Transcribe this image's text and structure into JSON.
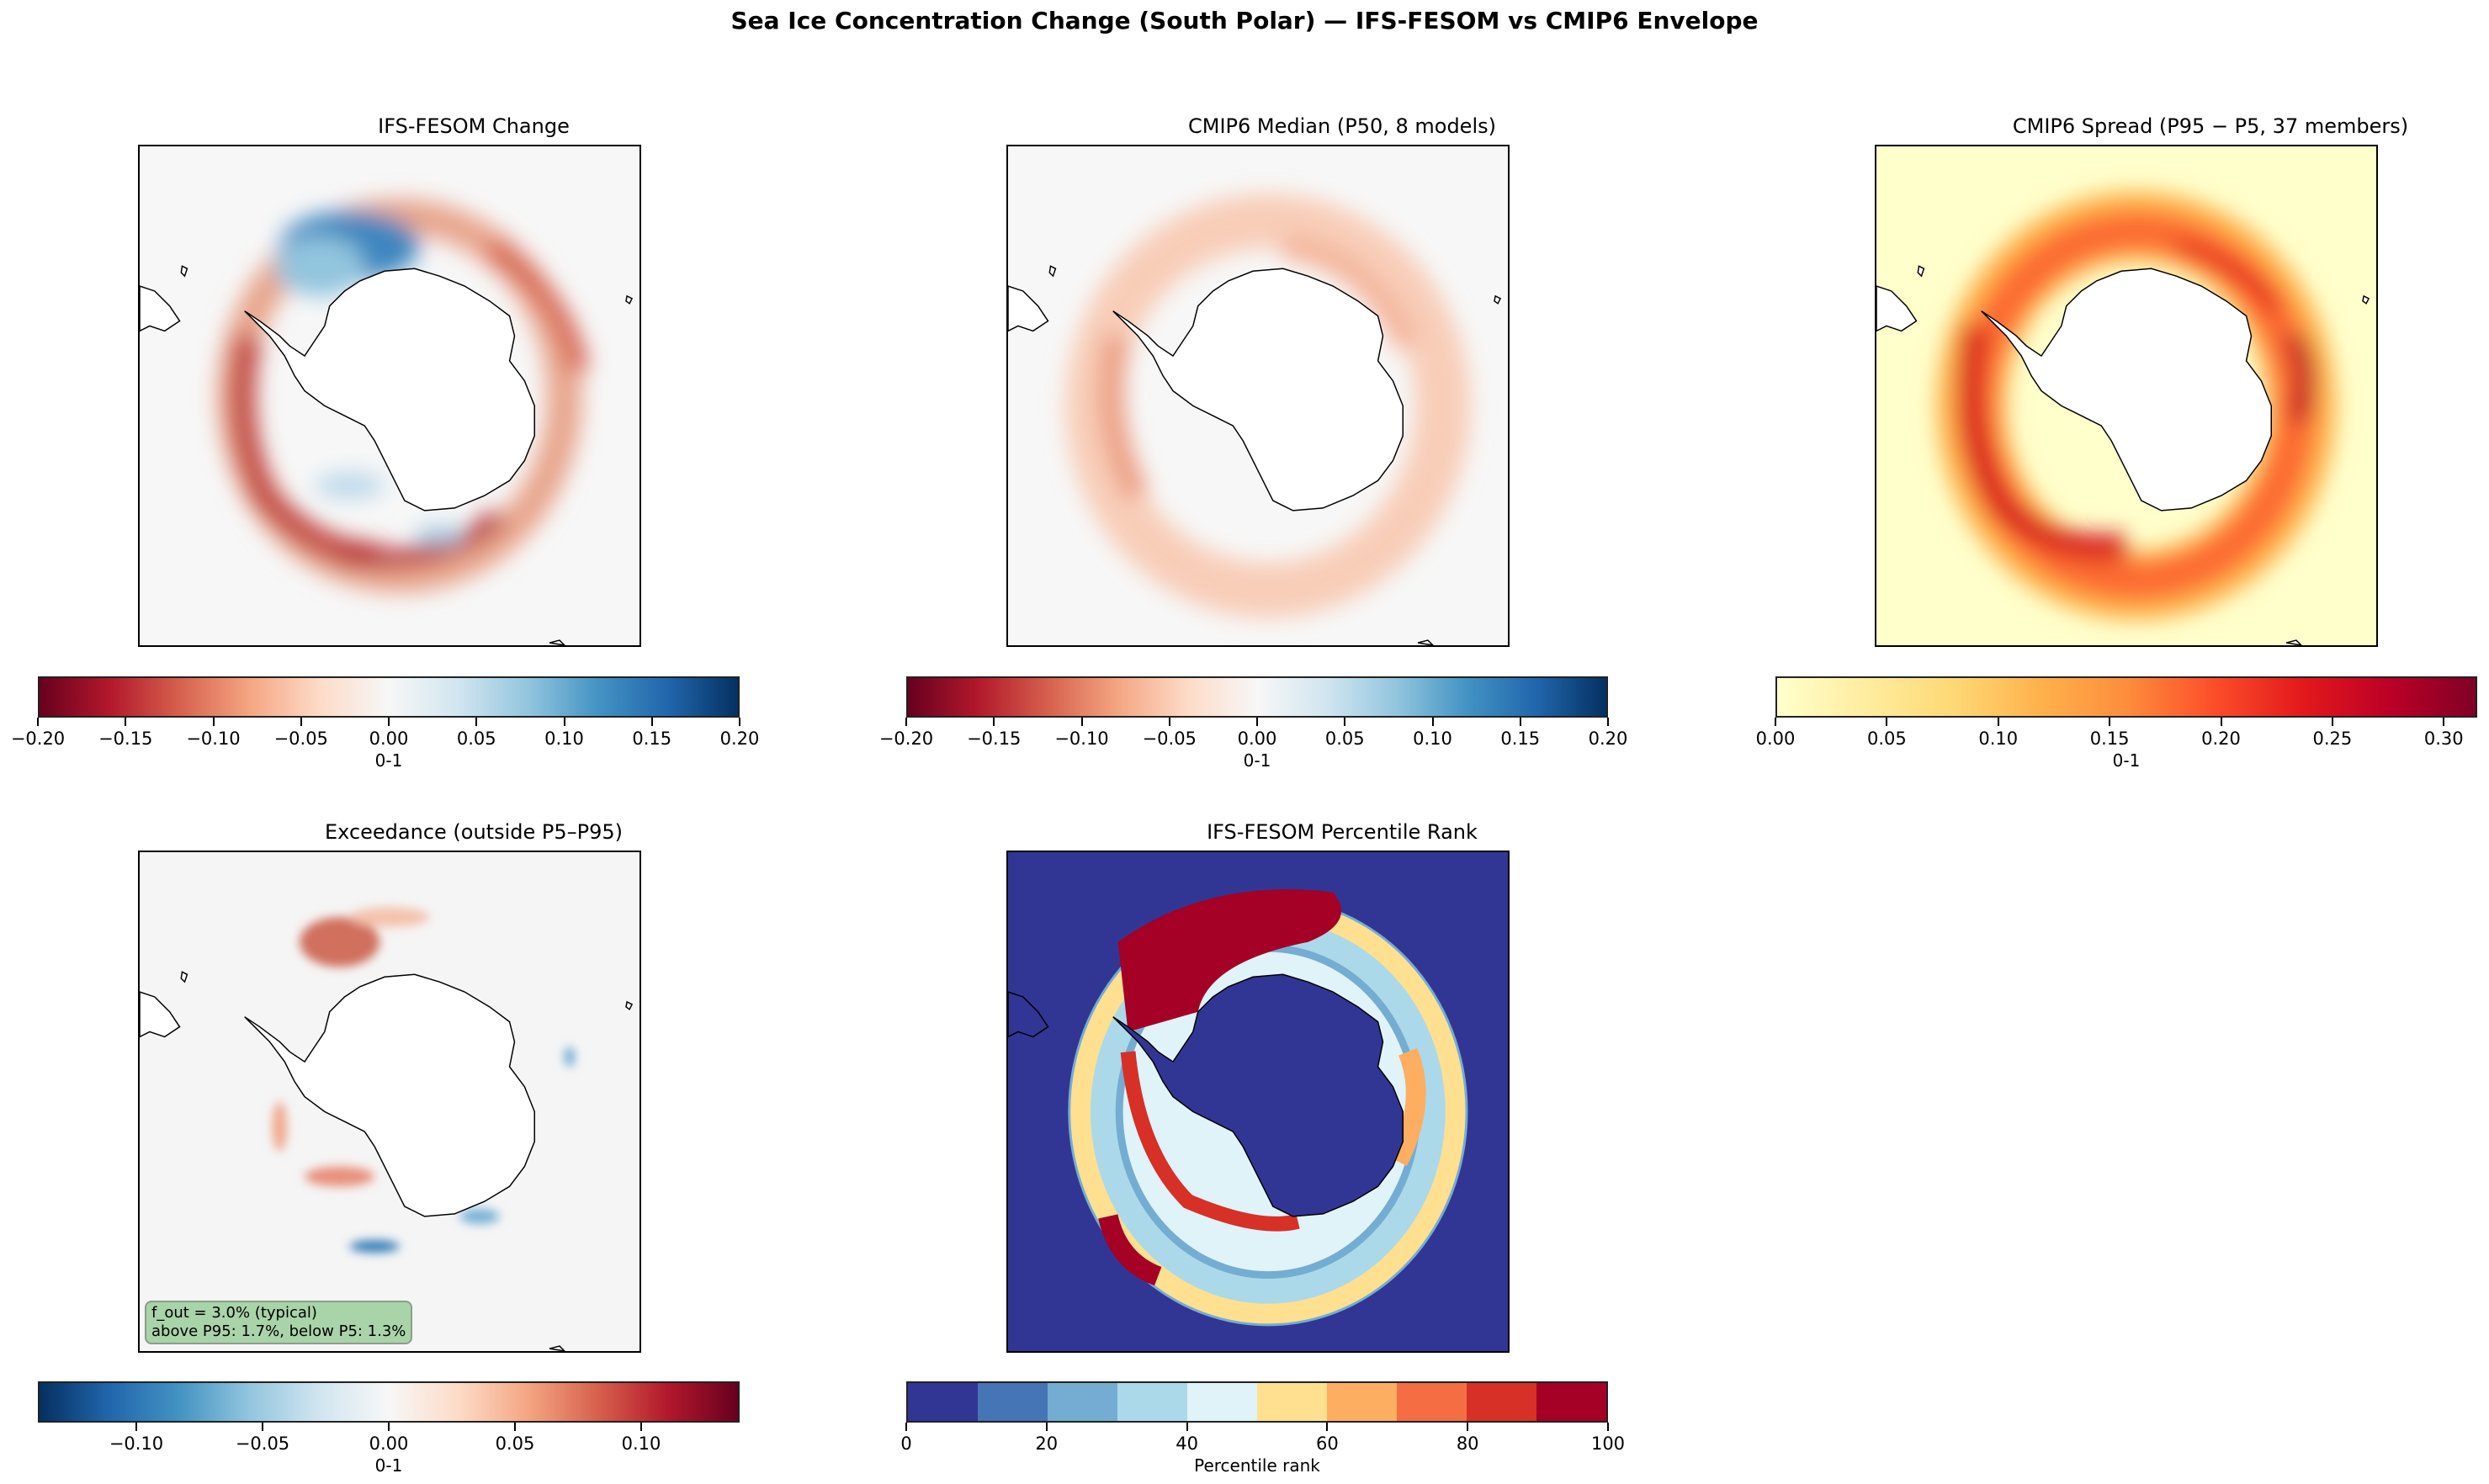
{
  "title": "Sea Ice Concentration Change (South Polar) — IFS-FESOM vs CMIP6 Envelope",
  "chart_data": [
    {
      "type": "heatmap",
      "title": "IFS-FESOM Change",
      "projection": "south-polar-stereographic",
      "cmap": "RdBu",
      "cmap_stops": [
        "#67001f",
        "#b2182b",
        "#d6604d",
        "#f4a582",
        "#fddbc7",
        "#f7f7f7",
        "#d1e5f0",
        "#92c5de",
        "#4393c3",
        "#2166ac",
        "#053061"
      ],
      "range": [
        -0.2,
        0.2
      ],
      "ticks": [
        "−0.20",
        "−0.15",
        "−0.10",
        "−0.05",
        "0.00",
        "0.05",
        "0.10",
        "0.15",
        "0.20"
      ],
      "tick_values": [
        -0.2,
        -0.15,
        -0.1,
        -0.05,
        0,
        0.05,
        0.1,
        0.15,
        0.2
      ],
      "colorbar_label": "0-1"
    },
    {
      "type": "heatmap",
      "title": "CMIP6 Median (P50, 8 models)",
      "projection": "south-polar-stereographic",
      "cmap": "RdBu",
      "cmap_stops": [
        "#67001f",
        "#b2182b",
        "#d6604d",
        "#f4a582",
        "#fddbc7",
        "#f7f7f7",
        "#d1e5f0",
        "#92c5de",
        "#4393c3",
        "#2166ac",
        "#053061"
      ],
      "range": [
        -0.2,
        0.2
      ],
      "ticks": [
        "−0.20",
        "−0.15",
        "−0.10",
        "−0.05",
        "0.00",
        "0.05",
        "0.10",
        "0.15",
        "0.20"
      ],
      "tick_values": [
        -0.2,
        -0.15,
        -0.1,
        -0.05,
        0,
        0.05,
        0.1,
        0.15,
        0.2
      ],
      "colorbar_label": "0-1"
    },
    {
      "type": "heatmap",
      "title": "CMIP6 Spread (P95 − P5, 37 members)",
      "projection": "south-polar-stereographic",
      "cmap": "YlOrRd",
      "cmap_stops": [
        "#ffffcc",
        "#ffeda0",
        "#fed976",
        "#feb24c",
        "#fd8d3c",
        "#fc4e2a",
        "#e31a1c",
        "#bd0026",
        "#800026"
      ],
      "range": [
        0,
        0.315
      ],
      "ticks": [
        "0.00",
        "0.05",
        "0.10",
        "0.15",
        "0.20",
        "0.25",
        "0.30"
      ],
      "tick_values": [
        0,
        0.05,
        0.1,
        0.15,
        0.2,
        0.25,
        0.3
      ],
      "colorbar_label": "0-1"
    },
    {
      "type": "heatmap",
      "title": "Exceedance (outside P5–P95)",
      "projection": "south-polar-stereographic",
      "cmap": "RdBu_r",
      "cmap_stops": [
        "#053061",
        "#2166ac",
        "#4393c3",
        "#92c5de",
        "#d1e5f0",
        "#f7f7f7",
        "#fddbc7",
        "#f4a582",
        "#d6604d",
        "#b2182b",
        "#67001f"
      ],
      "range": [
        -0.139,
        0.139
      ],
      "ticks": [
        "−0.10",
        "−0.05",
        "0.00",
        "0.05",
        "0.10"
      ],
      "tick_values": [
        -0.1,
        -0.05,
        0,
        0.05,
        0.1
      ],
      "colorbar_label": "0-1",
      "annotation": {
        "line1": "f_out = 3.0% (typical)",
        "line2": "above P95: 1.7%, below P5: 1.3%"
      }
    },
    {
      "type": "heatmap",
      "title": "IFS-FESOM Percentile Rank",
      "projection": "south-polar-stereographic",
      "cmap": "RdYlBu_r (10 discrete levels)",
      "discrete": true,
      "cmap_stops": [
        "#313695",
        "#4575b4",
        "#74add1",
        "#abd9e9",
        "#e0f3f8",
        "#fee090",
        "#fdae61",
        "#f46d43",
        "#d73027",
        "#a50026"
      ],
      "range": [
        0,
        100
      ],
      "ticks": [
        "0",
        "20",
        "40",
        "60",
        "80",
        "100"
      ],
      "tick_values": [
        0,
        20,
        40,
        60,
        80,
        100
      ],
      "colorbar_label": "Percentile rank"
    }
  ]
}
